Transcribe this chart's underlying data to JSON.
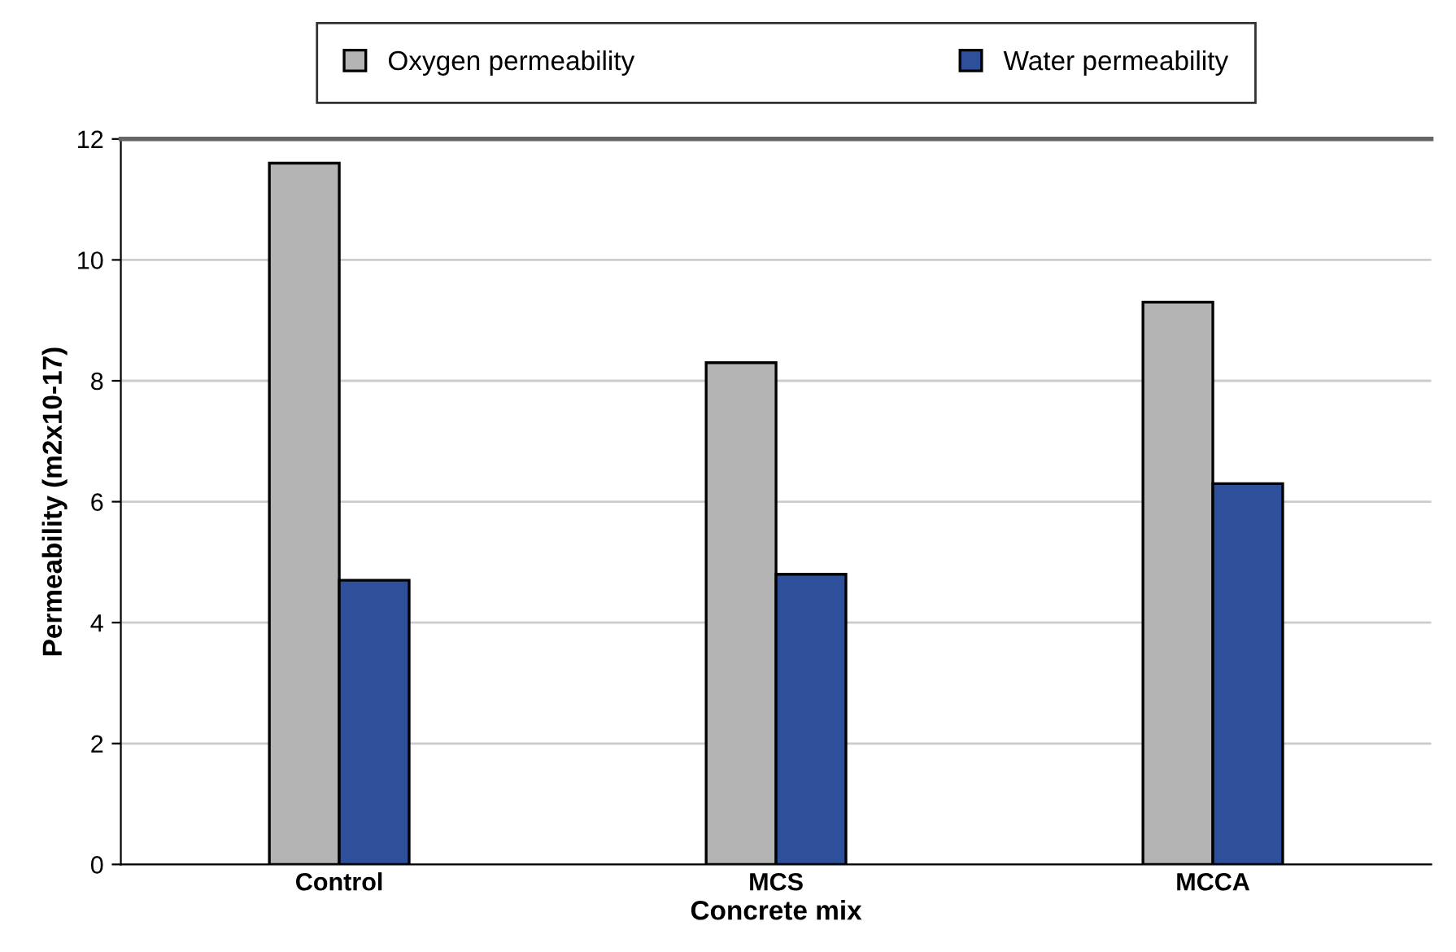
{
  "chart_data": {
    "type": "bar",
    "xlabel": "Concrete mix",
    "ylabel": "Permeability (m2x10-17)",
    "categories": [
      "Control",
      "MCS",
      "MCCA"
    ],
    "series": [
      {
        "name": "Oxygen permeability",
        "color": "#b4b4b4",
        "values": [
          11.6,
          8.3,
          9.3
        ]
      },
      {
        "name": "Water permeability",
        "color": "#2e4f9a",
        "values": [
          4.7,
          4.8,
          6.3
        ]
      }
    ],
    "ylim": [
      0,
      12
    ],
    "yticks": [
      0,
      2,
      4,
      6,
      8,
      10,
      12
    ],
    "grid": "y",
    "legend": "top"
  }
}
